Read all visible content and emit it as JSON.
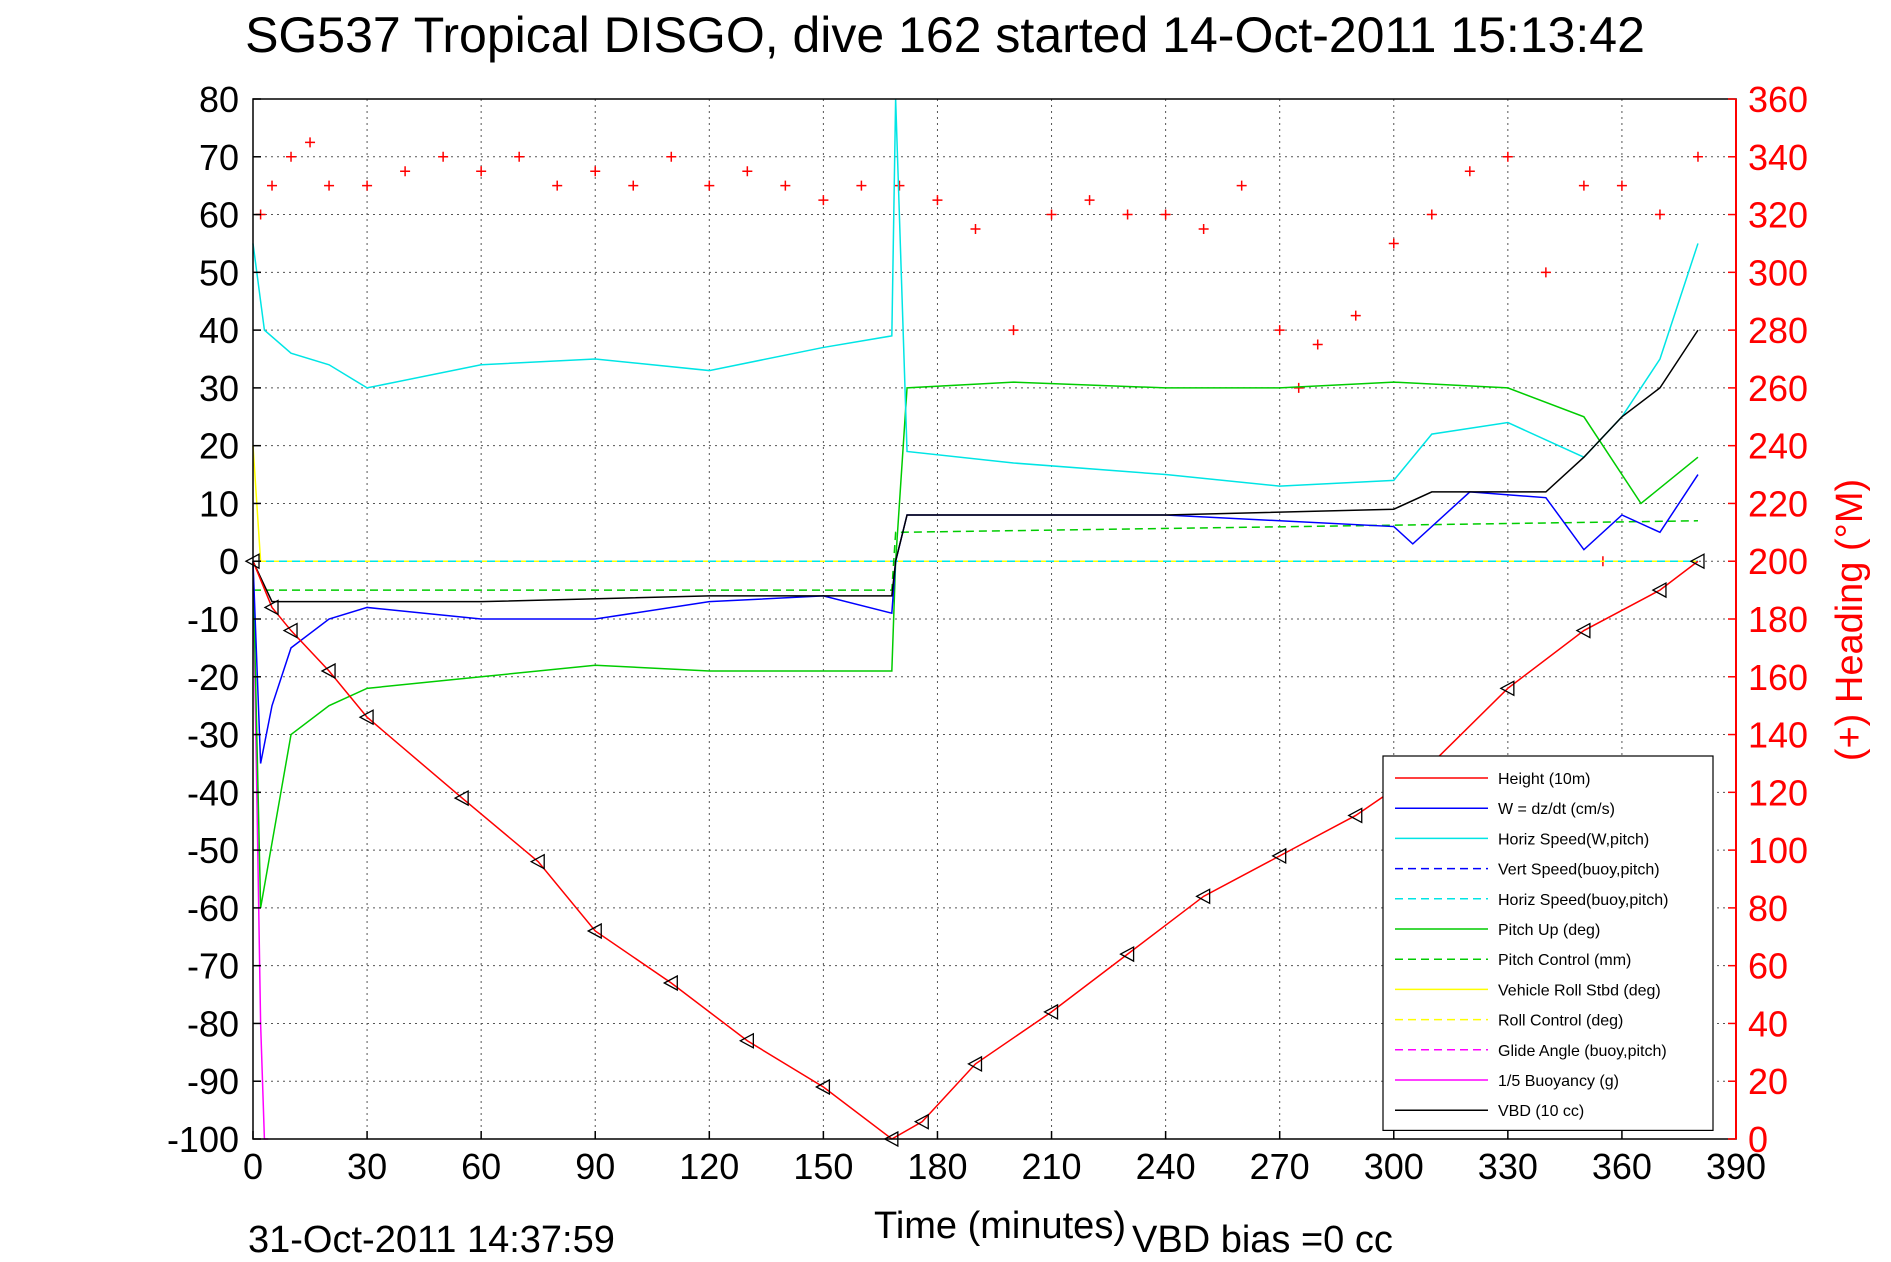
{
  "chart_data": {
    "type": "line",
    "title": "SG537 Tropical DISGO, dive 162 started 14-Oct-2011 15:13:42",
    "xlabel": "Time (minutes)",
    "ylabel_right": "(+) Heading (°M)",
    "xlim": [
      0,
      390
    ],
    "ylim_left": [
      -100,
      80
    ],
    "ylim_right": [
      0,
      360
    ],
    "x_ticks": [
      0,
      30,
      60,
      90,
      120,
      150,
      180,
      210,
      240,
      270,
      300,
      330,
      360,
      390
    ],
    "y_ticks_left": [
      80,
      70,
      60,
      50,
      40,
      30,
      20,
      10,
      0,
      -10,
      -20,
      -30,
      -40,
      -50,
      -60,
      -70,
      -80,
      -90,
      -100
    ],
    "y_ticks_right": [
      360,
      340,
      320,
      300,
      280,
      260,
      240,
      220,
      200,
      180,
      160,
      140,
      120,
      100,
      80,
      60,
      40,
      20,
      0
    ],
    "grid": true,
    "legend_position": "bottom-right",
    "footer_left": "31-Oct-2011 14:37:59",
    "footer_right": "VBD bias =0 cc",
    "series": [
      {
        "name": "Height (10m)",
        "color": "#ff0000",
        "style": "solid",
        "markers": "triangle",
        "x": [
          0,
          5,
          10,
          20,
          30,
          55,
          75,
          90,
          110,
          130,
          150,
          168,
          176,
          190,
          210,
          230,
          250,
          270,
          290,
          310,
          330,
          350,
          370,
          380
        ],
        "y": [
          0,
          -8,
          -12,
          -19,
          -27,
          -41,
          -52,
          -64,
          -73,
          -83,
          -91,
          -100,
          -97,
          -87,
          -78,
          -68,
          -58,
          -51,
          -44,
          -35,
          -22,
          -12,
          -5,
          0
        ]
      },
      {
        "name": "W = dz/dt (cm/s)",
        "color": "#0000ff",
        "style": "solid",
        "x": [
          0,
          2,
          5,
          10,
          20,
          30,
          60,
          90,
          120,
          150,
          168,
          169,
          172,
          200,
          240,
          270,
          300,
          305,
          320,
          340,
          350,
          360,
          370,
          380
        ],
        "y": [
          0,
          -35,
          -25,
          -15,
          -10,
          -8,
          -10,
          -10,
          -7,
          -6,
          -9,
          0,
          8,
          8,
          8,
          7,
          6,
          3,
          12,
          11,
          2,
          8,
          5,
          15
        ]
      },
      {
        "name": "Horiz Speed(W,pitch)",
        "color": "#00e5e5",
        "style": "solid",
        "x": [
          0,
          3,
          10,
          20,
          30,
          60,
          90,
          120,
          150,
          168,
          169,
          172,
          200,
          240,
          270,
          300,
          310,
          330,
          350,
          360,
          370,
          380
        ],
        "y": [
          55,
          40,
          36,
          34,
          30,
          34,
          35,
          33,
          37,
          39,
          80,
          19,
          17,
          15,
          13,
          14,
          22,
          24,
          18,
          25,
          35,
          55
        ]
      },
      {
        "name": "Vert Speed(buoy,pitch)",
        "color": "#0000ff",
        "style": "dashed",
        "x": [
          0,
          380
        ],
        "y": [
          0,
          0
        ]
      },
      {
        "name": "Horiz Speed(buoy,pitch)",
        "color": "#00e5e5",
        "style": "dashed",
        "x": [
          0,
          380
        ],
        "y": [
          0,
          0
        ]
      },
      {
        "name": "Pitch Up (deg)",
        "color": "#00cc00",
        "style": "solid",
        "x": [
          0,
          2,
          10,
          20,
          30,
          60,
          90,
          120,
          150,
          168,
          169,
          172,
          200,
          240,
          270,
          300,
          330,
          350,
          365,
          380
        ],
        "y": [
          0,
          -60,
          -30,
          -25,
          -22,
          -20,
          -18,
          -19,
          -19,
          -19,
          0,
          30,
          31,
          30,
          30,
          31,
          30,
          25,
          10,
          18
        ]
      },
      {
        "name": "Pitch Control (mm)",
        "color": "#00cc00",
        "style": "dashed",
        "x": [
          0,
          168,
          169,
          380
        ],
        "y": [
          -5,
          -5,
          5,
          7
        ]
      },
      {
        "name": "Vehicle Roll Stbd (deg)",
        "color": "#ffff00",
        "style": "solid",
        "x": [
          0,
          2,
          5,
          10,
          30,
          60,
          90,
          120,
          150,
          168,
          180,
          240,
          300,
          340,
          370,
          380
        ],
        "y": [
          20,
          0,
          0,
          0,
          0,
          0,
          0,
          0,
          0,
          0,
          0,
          0,
          0,
          0,
          0,
          0
        ]
      },
      {
        "name": "Roll Control (deg)",
        "color": "#ffff00",
        "style": "dashed",
        "x": [
          0,
          380
        ],
        "y": [
          0,
          0
        ]
      },
      {
        "name": "Glide Angle (buoy,pitch)",
        "color": "#ff00ff",
        "style": "dashed",
        "x": [
          0,
          380
        ],
        "y": [
          0,
          0
        ]
      },
      {
        "name": "1/5 Buoyancy (g)",
        "color": "#ff00ff",
        "style": "solid",
        "x": [
          0,
          1,
          2,
          3,
          4
        ],
        "y": [
          0,
          -40,
          -80,
          -100,
          -100
        ]
      },
      {
        "name": "VBD (10 cc)",
        "color": "#000000",
        "style": "solid",
        "x": [
          0,
          5,
          60,
          120,
          168,
          169,
          172,
          240,
          300,
          310,
          340,
          350,
          360,
          370,
          380
        ],
        "y": [
          0,
          -7,
          -7,
          -6,
          -6,
          0,
          8,
          8,
          9,
          12,
          12,
          18,
          25,
          30,
          40
        ]
      },
      {
        "name": "Heading",
        "axis": "right",
        "color": "#ff0000",
        "style": "markers",
        "markers": "plus",
        "x": [
          2,
          5,
          10,
          15,
          20,
          30,
          40,
          50,
          60,
          70,
          80,
          90,
          100,
          110,
          120,
          130,
          140,
          150,
          160,
          170,
          180,
          190,
          200,
          210,
          220,
          230,
          240,
          250,
          260,
          270,
          275,
          280,
          290,
          300,
          310,
          320,
          330,
          340,
          350,
          355,
          360,
          370,
          380
        ],
        "y": [
          320,
          330,
          340,
          345,
          330,
          330,
          335,
          340,
          335,
          340,
          330,
          335,
          330,
          340,
          330,
          335,
          330,
          325,
          330,
          330,
          325,
          315,
          280,
          320,
          325,
          320,
          320,
          315,
          330,
          280,
          260,
          275,
          285,
          310,
          320,
          335,
          340,
          300,
          330,
          200,
          330,
          320,
          340
        ]
      }
    ]
  }
}
